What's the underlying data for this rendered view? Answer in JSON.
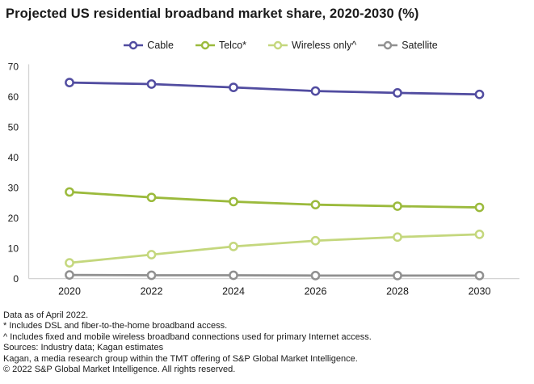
{
  "title": "Projected US residential broadband market share, 2020-2030 (%)",
  "colors": {
    "text": "#1A1A1A",
    "axis": "#D4D4D4",
    "cable": "#514CA0",
    "telco": "#9BBA3C",
    "wireless_only": "#C4D77D",
    "satellite": "#909090"
  },
  "chart_data": {
    "type": "line",
    "title": "Projected US residential broadband market share, 2020-2030 (%)",
    "categories": [
      "2020",
      "2022",
      "2024",
      "2026",
      "2028",
      "2030"
    ],
    "series": [
      {
        "name": "Cable",
        "color": "#514CA0",
        "values": [
          64.7,
          64.2,
          63.1,
          61.9,
          61.3,
          60.8
        ]
      },
      {
        "name": "Telco*",
        "color": "#9BBA3C",
        "values": [
          28.6,
          26.8,
          25.4,
          24.4,
          23.9,
          23.5
        ]
      },
      {
        "name": "Wireless only^",
        "color": "#C4D77D",
        "values": [
          5.2,
          7.9,
          10.6,
          12.5,
          13.7,
          14.6
        ]
      },
      {
        "name": "Satellite",
        "color": "#909090",
        "values": [
          1.2,
          1.1,
          1.1,
          1.0,
          1.0,
          1.0
        ]
      }
    ],
    "xlabel": "",
    "ylabel": "",
    "ylim": [
      0,
      70
    ],
    "yticks": [
      0,
      10,
      20,
      30,
      40,
      50,
      60,
      70
    ],
    "grid": false,
    "legend_position": "top",
    "marker": "open-circle"
  },
  "footer": {
    "lines": [
      "Data as of April 2022.",
      "* Includes DSL and fiber-to-the-home broadband access.",
      "^ Includes fixed and mobile wireless broadband connections used for primary Internet access.",
      "Sources: Industry data; Kagan estimates",
      "Kagan, a media research group within the TMT offering of S&P Global Market Intelligence.",
      "© 2022 S&P Global Market Intelligence. All rights reserved."
    ]
  }
}
